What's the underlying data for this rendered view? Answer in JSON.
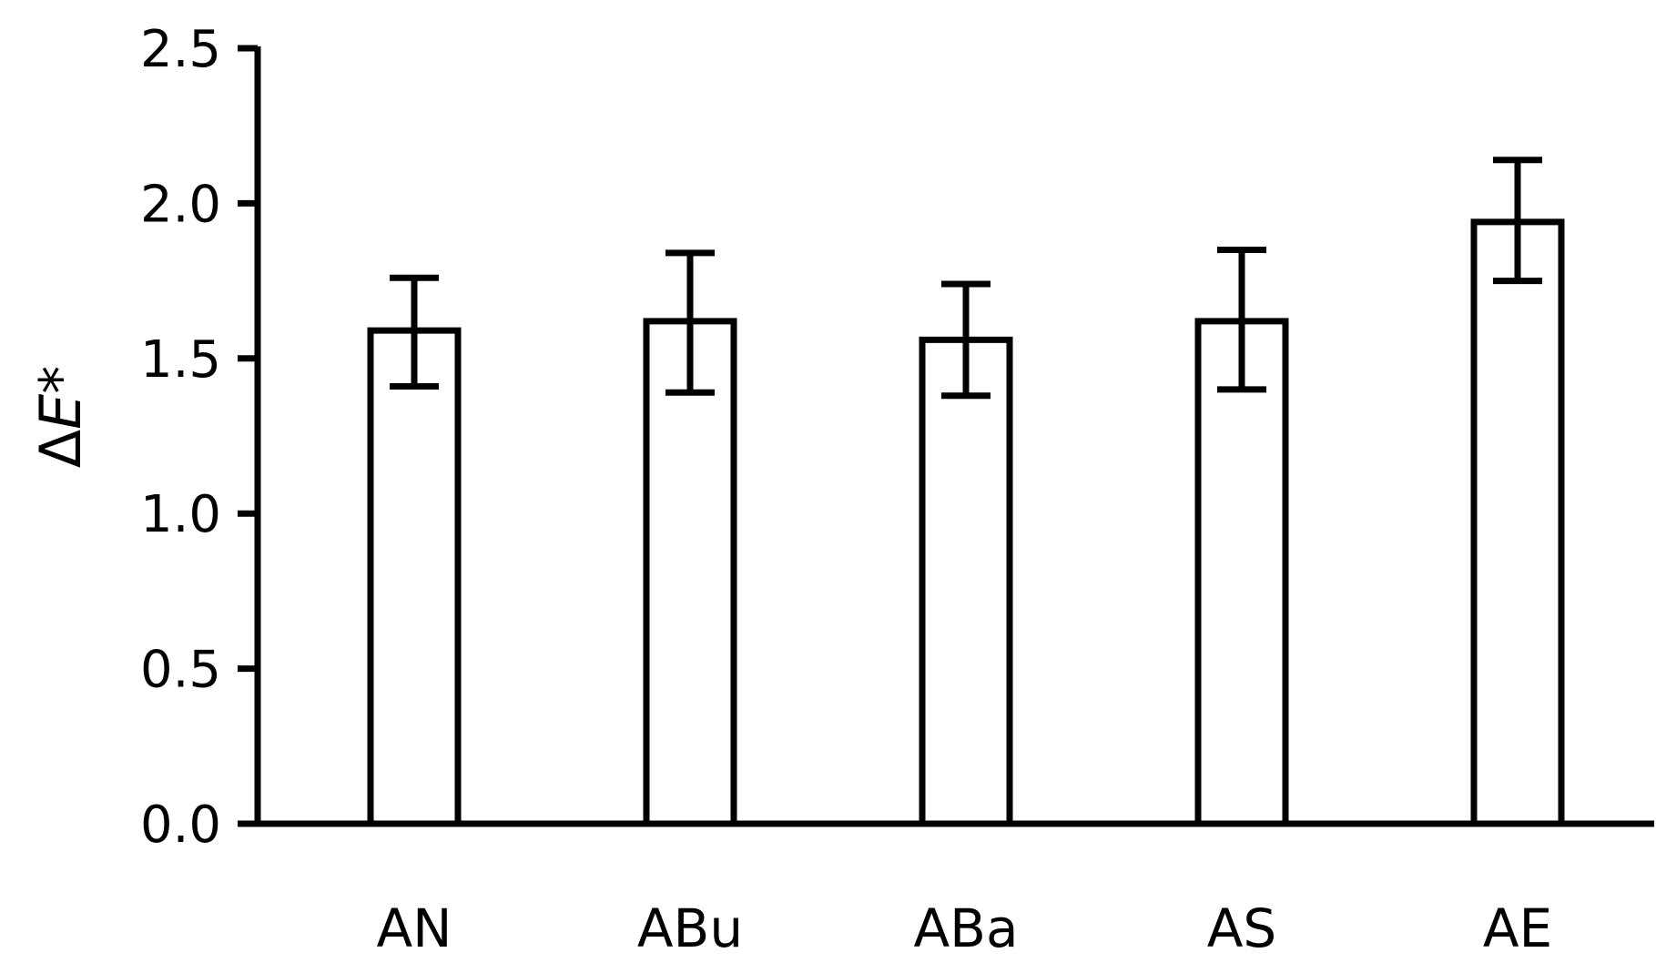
{
  "chart_data": {
    "type": "bar",
    "title": "",
    "xlabel": "",
    "ylabel": {
      "symbol": "Δ",
      "variable": "E",
      "suffix": "*"
    },
    "categories": [
      "AN",
      "ABu",
      "ABa",
      "AS",
      "AE"
    ],
    "series": [
      {
        "values": [
          1.59,
          1.62,
          1.56,
          1.62,
          1.94
        ],
        "error_low": [
          1.41,
          1.39,
          1.38,
          1.4,
          1.75
        ],
        "error_high": [
          1.76,
          1.84,
          1.74,
          1.85,
          2.14
        ]
      }
    ],
    "ylim": [
      0,
      2.5
    ],
    "yticks": [
      0.0,
      0.5,
      1.0,
      1.5,
      2.0,
      2.5
    ],
    "ytick_labels": [
      "0.0",
      "0.5",
      "1.0",
      "1.5",
      "2.0",
      "2.5"
    ],
    "grid": false,
    "legend": "none",
    "colors": {
      "bar_fill": "#ffffff",
      "stroke": "#000000"
    }
  }
}
